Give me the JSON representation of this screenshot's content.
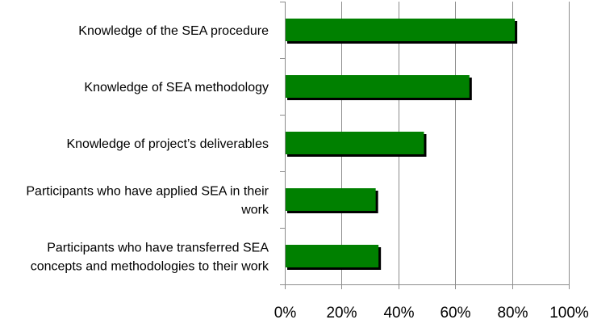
{
  "chart_data": {
    "type": "bar",
    "orientation": "horizontal",
    "categories": [
      [
        "Knowledge of the SEA procedure"
      ],
      [
        "Knowledge of SEA methodology"
      ],
      [
        "Knowledge of project’s deliverables"
      ],
      [
        "Participants who have applied SEA in their",
        "work"
      ],
      [
        "Participants who have transferred SEA",
        "concepts and methodologies to their work"
      ]
    ],
    "values": [
      0.81,
      0.65,
      0.49,
      0.32,
      0.33
    ],
    "xlim": [
      0,
      1
    ],
    "xticks": [
      0,
      0.2,
      0.4,
      0.6,
      0.8,
      1.0
    ],
    "xtick_labels": [
      "0%",
      "20%",
      "40%",
      "60%",
      "80%",
      "100%"
    ],
    "title": "",
    "xlabel": "",
    "ylabel": "",
    "grid": true,
    "legend": "none",
    "colors": {
      "bar": "#008000",
      "shadow": "#000000",
      "grid": "#8c8c8c",
      "axis": "#8c8c8c"
    }
  }
}
